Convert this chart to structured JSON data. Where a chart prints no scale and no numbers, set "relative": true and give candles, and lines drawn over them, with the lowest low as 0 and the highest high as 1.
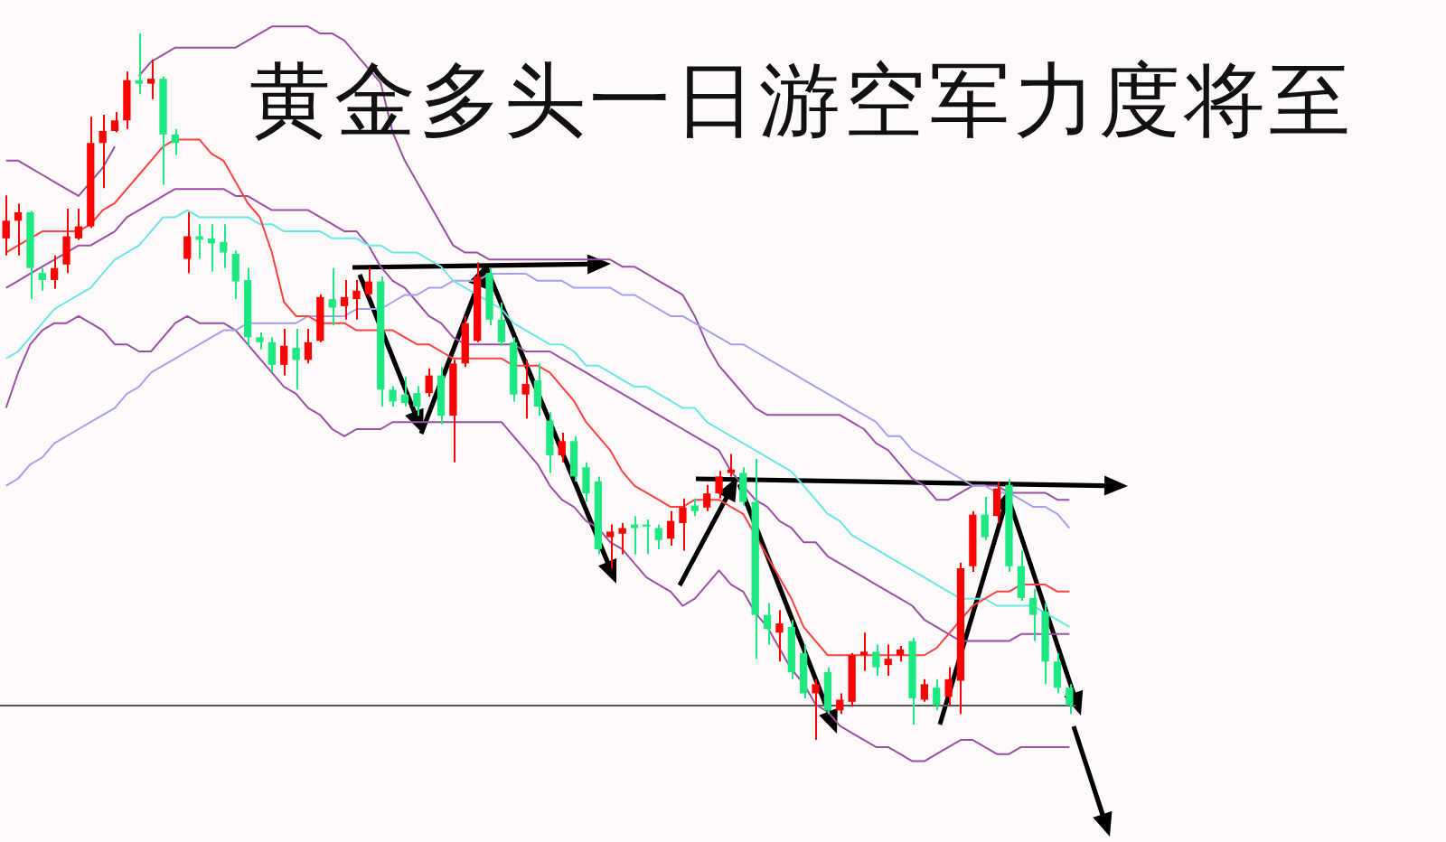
{
  "chart_data": {
    "type": "candlestick",
    "title": "黄金多头一日游空军力度将至",
    "relative": true,
    "legend": false,
    "categories": [
      null,
      null,
      null,
      null,
      null,
      null,
      null,
      null,
      null,
      null,
      null,
      null,
      null,
      null,
      null,
      null,
      null,
      null,
      null,
      null,
      null,
      null,
      null,
      null,
      null,
      null,
      null,
      null,
      null,
      null,
      null,
      null,
      null,
      null,
      null,
      null,
      null,
      null,
      null,
      null,
      null,
      null,
      null,
      null,
      null,
      null,
      null,
      null,
      null,
      null,
      null,
      null,
      null,
      null,
      null,
      null,
      null,
      null,
      null,
      null,
      null,
      null,
      null,
      null,
      null,
      null,
      null,
      null,
      null,
      null,
      null,
      null,
      null,
      null,
      null,
      null,
      null,
      null,
      null,
      null,
      null,
      null,
      null,
      null,
      null,
      null,
      null,
      null,
      null
    ],
    "ohlc": [
      [
        0.71,
        0.771,
        0.686,
        0.735
      ],
      [
        0.735,
        0.759,
        0.686,
        0.747
      ],
      [
        0.747,
        0.749,
        0.624,
        0.668
      ],
      [
        0.661,
        0.668,
        0.636,
        0.651
      ],
      [
        0.651,
        0.686,
        0.639,
        0.668
      ],
      [
        0.673,
        0.752,
        0.661,
        0.713
      ],
      [
        0.71,
        0.752,
        0.708,
        0.727
      ],
      [
        0.727,
        0.882,
        0.725,
        0.845
      ],
      [
        0.845,
        0.885,
        0.781,
        0.862
      ],
      [
        0.862,
        0.889,
        0.86,
        0.877
      ],
      [
        0.877,
        0.946,
        0.865,
        0.934
      ],
      [
        0.934,
        1,
        0.914,
        0.929
      ],
      [
        0.929,
        0.963,
        0.907,
        0.936
      ],
      [
        0.936,
        0.939,
        0.786,
        0.857
      ],
      [
        0.857,
        0.865,
        0.828,
        0.845
      ],
      [
        0.681,
        0.747,
        0.661,
        0.713
      ],
      [
        0.713,
        0.73,
        0.681,
        0.708
      ],
      [
        0.71,
        0.73,
        0.663,
        0.703
      ],
      [
        0.705,
        0.73,
        0.668,
        0.69
      ],
      [
        0.688,
        0.693,
        0.624,
        0.649
      ],
      [
        0.651,
        0.668,
        0.558,
        0.57
      ],
      [
        0.57,
        0.577,
        0.553,
        0.563
      ],
      [
        0.563,
        0.57,
        0.521,
        0.531
      ],
      [
        0.531,
        0.582,
        0.516,
        0.558
      ],
      [
        0.555,
        0.582,
        0.496,
        0.538
      ],
      [
        0.538,
        0.582,
        0.533,
        0.563
      ],
      [
        0.565,
        0.631,
        0.563,
        0.627
      ],
      [
        0.624,
        0.668,
        0.587,
        0.612
      ],
      [
        0.614,
        0.651,
        0.595,
        0.627
      ],
      [
        0.624,
        0.651,
        0.595,
        0.636
      ],
      [
        0.631,
        0.668,
        0.627,
        0.649
      ],
      [
        0.649,
        0.656,
        0.472,
        0.496
      ],
      [
        0.496,
        0.501,
        0.472,
        0.479
      ],
      [
        0.489,
        0.514,
        0.472,
        0.477
      ],
      [
        0.491,
        0.501,
        0.459,
        0.472
      ],
      [
        0.491,
        0.526,
        0.486,
        0.516
      ],
      [
        0.516,
        0.528,
        0.447,
        0.459
      ],
      [
        0.459,
        0.538,
        0.393,
        0.533
      ],
      [
        0.533,
        0.6,
        0.528,
        0.59
      ],
      [
        0.565,
        0.676,
        0.563,
        0.656
      ],
      [
        0.661,
        0.668,
        0.587,
        0.595
      ],
      [
        0.595,
        0.619,
        0.558,
        0.563
      ],
      [
        0.563,
        0.57,
        0.479,
        0.489
      ],
      [
        0.489,
        0.538,
        0.455,
        0.504
      ],
      [
        0.509,
        0.533,
        0.459,
        0.472
      ],
      [
        0.452,
        0.464,
        0.378,
        0.403
      ],
      [
        0.403,
        0.435,
        0.393,
        0.423
      ],
      [
        0.423,
        0.43,
        0.366,
        0.373
      ],
      [
        0.386,
        0.393,
        0.337,
        0.349
      ],
      [
        0.366,
        0.373,
        0.263,
        0.27
      ],
      [
        0.287,
        0.305,
        0.243,
        0.295
      ],
      [
        0.292,
        0.307,
        0.263,
        0.3
      ],
      [
        0.305,
        0.317,
        0.263,
        0.3
      ],
      [
        0.305,
        0.312,
        0.263,
        0.302
      ],
      [
        0.3,
        0.305,
        0.27,
        0.283
      ],
      [
        0.285,
        0.324,
        0.275,
        0.31
      ],
      [
        0.307,
        0.342,
        0.268,
        0.329
      ],
      [
        0.332,
        0.342,
        0.317,
        0.324
      ],
      [
        0.329,
        0.361,
        0.324,
        0.349
      ],
      [
        0.349,
        0.381,
        0.342,
        0.373
      ],
      [
        0.378,
        0.405,
        0.373,
        0.383
      ],
      [
        0.378,
        0.386,
        0.332,
        0.337
      ],
      [
        0.337,
        0.398,
        0.115,
        0.177
      ],
      [
        0.177,
        0.194,
        0.135,
        0.157
      ],
      [
        0.152,
        0.184,
        0.111,
        0.165
      ],
      [
        0.16,
        0.17,
        0.086,
        0.096
      ],
      [
        0.123,
        0.135,
        0.059,
        0.066
      ],
      [
        0.066,
        0.086,
        0,
        0.079
      ],
      [
        0.096,
        0.103,
        0.037,
        0.042
      ],
      [
        0.042,
        0.066,
        0.037,
        0.057
      ],
      [
        0.054,
        0.123,
        0.047,
        0.12
      ],
      [
        0.12,
        0.152,
        0.098,
        0.125
      ],
      [
        0.125,
        0.135,
        0.091,
        0.103
      ],
      [
        0.106,
        0.135,
        0.091,
        0.115
      ],
      [
        0.12,
        0.133,
        0.111,
        0.128
      ],
      [
        0.14,
        0.145,
        0.022,
        0.059
      ],
      [
        0.057,
        0.086,
        0.054,
        0.079
      ],
      [
        0.074,
        0.086,
        0.042,
        0.049
      ],
      [
        0.061,
        0.103,
        0.049,
        0.086
      ],
      [
        0.084,
        0.251,
        0.037,
        0.243
      ],
      [
        0.246,
        0.324,
        0.238,
        0.319
      ],
      [
        0.319,
        0.344,
        0.283,
        0.287
      ],
      [
        0.317,
        0.366,
        0.307,
        0.356
      ],
      [
        0.361,
        0.369,
        0.238,
        0.246
      ],
      [
        0.246,
        0.268,
        0.197,
        0.201
      ],
      [
        0.201,
        0.214,
        0.14,
        0.177
      ],
      [
        0.182,
        0.194,
        0.079,
        0.111
      ],
      [
        0.111,
        0.123,
        0.066,
        0.074
      ],
      [
        0.074,
        0.079,
        0.037,
        0.049
      ]
    ],
    "colors": [
      "#ff0000",
      "#ff0000",
      "#1ee882",
      "#1ee882",
      "#ff0000",
      "#ff0000",
      "#ff0000",
      "#ff0000",
      "#ff0000",
      "#ff0000",
      "#ff0000",
      "#1ee882",
      "#ff0000",
      "#1ee882",
      "#1ee882",
      "#ff0000",
      "#1ee882",
      "#1ee882",
      "#1ee882",
      "#1ee882",
      "#1ee882",
      "#1ee882",
      "#1ee882",
      "#ff0000",
      "#1ee882",
      "#ff0000",
      "#ff0000",
      "#1ee882",
      "#ff0000",
      "#ff0000",
      "#ff0000",
      "#1ee882",
      "#1ee882",
      "#1ee882",
      "#1ee882",
      "#ff0000",
      "#1ee882",
      "#ff0000",
      "#ff0000",
      "#ff0000",
      "#1ee882",
      "#1ee882",
      "#1ee882",
      "#ff0000",
      "#1ee882",
      "#1ee882",
      "#ff0000",
      "#1ee882",
      "#1ee882",
      "#1ee882",
      "#ff0000",
      "#ff0000",
      "#1ee882",
      "#1ee882",
      "#1ee882",
      "#ff0000",
      "#ff0000",
      "#1ee882",
      "#ff0000",
      "#ff0000",
      "#ff0000",
      "#1ee882",
      "#1ee882",
      "#1ee882",
      "#ff0000",
      "#1ee882",
      "#1ee882",
      "#ff0000",
      "#1ee882",
      "#ff0000",
      "#ff0000",
      "#ff0000",
      "#1ee882",
      "#ff0000",
      "#ff0000",
      "#1ee882",
      "#ff0000",
      "#1ee882",
      "#ff0000",
      "#ff0000",
      "#ff0000",
      "#1ee882",
      "#ff0000",
      "#1ee882",
      "#1ee882",
      "#1ee882",
      "#1ee882",
      "#1ee882",
      "#1ee882"
    ],
    "ref_lines": [
      {
        "axis": "y",
        "value": 0.049,
        "color": "#555555"
      }
    ],
    "series": [
      {
        "type": "line",
        "color": "#ff4040",
        "values": [
          0.69,
          0.7,
          0.71,
          0.72,
          0.72,
          0.72,
          0.72,
          0.73,
          0.75,
          0.76,
          0.78,
          0.8,
          0.82,
          0.84,
          0.85,
          0.85,
          0.85,
          0.83,
          0.82,
          0.79,
          0.76,
          0.74,
          0.69,
          0.62,
          0.6,
          0.6,
          0.59,
          0.59,
          0.59,
          0.58,
          0.58,
          0.58,
          0.58,
          0.57,
          0.56,
          0.56,
          0.55,
          0.54,
          0.54,
          0.54,
          0.54,
          0.54,
          0.53,
          0.53,
          0.53,
          0.52,
          0.5,
          0.48,
          0.45,
          0.43,
          0.41,
          0.38,
          0.36,
          0.35,
          0.34,
          0.33,
          0.33,
          0.34,
          0.34,
          0.34,
          0.33,
          0.32,
          0.29,
          0.26,
          0.23,
          0.2,
          0.16,
          0.14,
          0.12,
          0.12,
          0.12,
          0.12,
          0.12,
          0.12,
          0.12,
          0.12,
          0.12,
          0.13,
          0.15,
          0.17,
          0.19,
          0.2,
          0.21,
          0.21,
          0.22,
          0.22,
          0.22,
          0.21,
          0.21
        ]
      },
      {
        "type": "line",
        "color": "#6ae6ea",
        "values": [
          0.54,
          0.55,
          0.57,
          0.59,
          0.61,
          0.62,
          0.63,
          0.64,
          0.66,
          0.68,
          0.69,
          0.7,
          0.72,
          0.74,
          0.74,
          0.75,
          0.74,
          0.74,
          0.74,
          0.74,
          0.74,
          0.73,
          0.73,
          0.72,
          0.72,
          0.72,
          0.72,
          0.71,
          0.71,
          0.71,
          0.7,
          0.7,
          0.69,
          0.69,
          0.69,
          0.68,
          0.67,
          0.65,
          0.64,
          0.63,
          0.62,
          0.61,
          0.59,
          0.58,
          0.57,
          0.56,
          0.56,
          0.55,
          0.53,
          0.53,
          0.52,
          0.51,
          0.5,
          0.5,
          0.49,
          0.48,
          0.47,
          0.47,
          0.45,
          0.44,
          0.43,
          0.42,
          0.41,
          0.4,
          0.39,
          0.38,
          0.36,
          0.34,
          0.32,
          0.31,
          0.29,
          0.28,
          0.27,
          0.26,
          0.25,
          0.24,
          0.23,
          0.22,
          0.21,
          0.2,
          0.2,
          0.2,
          0.19,
          0.19,
          0.19,
          0.19,
          0.18,
          0.17,
          0.16
        ]
      },
      {
        "type": "line",
        "color": "#a6a0ec",
        "values": [
          0.36,
          0.37,
          0.39,
          0.4,
          0.42,
          0.43,
          0.44,
          0.45,
          0.46,
          0.47,
          0.49,
          0.5,
          0.52,
          0.53,
          0.54,
          0.55,
          0.56,
          0.57,
          0.58,
          0.58,
          0.59,
          0.59,
          0.59,
          0.59,
          0.59,
          0.6,
          0.6,
          0.6,
          0.6,
          0.61,
          0.61,
          0.61,
          0.62,
          0.63,
          0.63,
          0.64,
          0.64,
          0.65,
          0.65,
          0.65,
          0.66,
          0.66,
          0.66,
          0.66,
          0.65,
          0.65,
          0.65,
          0.64,
          0.64,
          0.64,
          0.64,
          0.63,
          0.63,
          0.62,
          0.61,
          0.6,
          0.6,
          0.59,
          0.58,
          0.57,
          0.56,
          0.56,
          0.55,
          0.54,
          0.53,
          0.52,
          0.51,
          0.5,
          0.49,
          0.48,
          0.47,
          0.46,
          0.45,
          0.43,
          0.43,
          0.41,
          0.4,
          0.39,
          0.38,
          0.37,
          0.36,
          0.36,
          0.35,
          0.35,
          0.34,
          0.33,
          0.33,
          0.32,
          0.3
        ]
      },
      {
        "type": "line",
        "color": "#9b4fa6",
        "values": [
          0.82,
          0.82,
          0.81,
          0.8,
          0.79,
          0.78,
          0.77,
          0.79,
          0.81,
          0.84,
          null,
          0.94,
          0.96,
          0.97,
          0.98,
          0.98,
          0.98,
          0.98,
          0.98,
          0.98,
          0.99,
          1.0,
          1.01,
          1.01,
          1.01,
          1.01,
          1.0,
          1.0,
          0.99,
          0.97,
          0.95,
          0.93,
          0.86,
          0.82,
          0.79,
          0.76,
          0.73,
          0.7,
          0.69,
          0.69,
          0.68,
          0.68,
          0.68,
          0.68,
          0.68,
          0.68,
          0.68,
          0.68,
          0.68,
          0.68,
          0.68,
          0.67,
          0.67,
          0.66,
          0.65,
          0.64,
          0.63,
          0.6,
          0.56,
          0.53,
          0.51,
          0.49,
          0.47,
          0.46,
          0.46,
          0.46,
          0.46,
          0.46,
          0.46,
          0.46,
          0.45,
          0.44,
          0.42,
          0.41,
          0.39,
          0.37,
          0.36,
          0.34,
          0.34,
          0.35,
          0.36,
          0.36,
          0.36,
          0.35,
          0.35,
          0.35,
          0.35,
          0.34,
          0.34
        ]
      },
      {
        "type": "line",
        "color": "#9b4fa6",
        "values": [
          0.64,
          0.65,
          0.66,
          0.67,
          0.68,
          0.69,
          0.7,
          0.7,
          0.71,
          0.72,
          0.74,
          0.75,
          0.76,
          0.77,
          0.78,
          0.78,
          0.78,
          0.78,
          0.78,
          0.77,
          0.77,
          0.76,
          0.75,
          0.75,
          0.75,
          0.75,
          0.74,
          0.73,
          0.72,
          0.72,
          0.7,
          0.67,
          0.65,
          0.64,
          0.62,
          0.6,
          0.59,
          0.57,
          0.56,
          0.56,
          0.56,
          0.56,
          0.56,
          0.55,
          0.55,
          0.55,
          0.54,
          0.53,
          0.52,
          0.51,
          0.5,
          0.49,
          0.48,
          0.47,
          0.46,
          0.45,
          0.44,
          0.43,
          0.42,
          0.41,
          0.38,
          0.36,
          0.34,
          0.33,
          0.31,
          0.3,
          0.28,
          0.28,
          0.26,
          0.25,
          0.24,
          0.23,
          0.22,
          0.21,
          0.2,
          0.19,
          0.17,
          0.16,
          0.15,
          0.14,
          0.14,
          0.14,
          0.14,
          0.14,
          0.15,
          0.15,
          0.15,
          0.15,
          0.15
        ]
      },
      {
        "type": "line",
        "color": "#9b4fa6",
        "values": [
          0.47,
          0.52,
          0.56,
          0.58,
          0.59,
          0.59,
          0.6,
          0.59,
          0.58,
          0.56,
          0.56,
          0.55,
          0.55,
          0.57,
          0.59,
          0.6,
          0.59,
          0.59,
          0.59,
          0.58,
          0.56,
          0.54,
          0.52,
          0.5,
          0.49,
          0.47,
          0.46,
          0.44,
          0.43,
          0.44,
          0.44,
          0.44,
          0.45,
          0.45,
          0.45,
          0.45,
          0.45,
          0.45,
          0.45,
          0.45,
          0.45,
          0.45,
          0.43,
          0.41,
          0.39,
          0.36,
          0.34,
          0.33,
          0.31,
          0.3,
          0.28,
          0.27,
          0.25,
          0.23,
          0.22,
          0.21,
          0.19,
          0.2,
          0.22,
          0.24,
          0.22,
          0.21,
          0.18,
          0.16,
          0.13,
          0.1,
          0.08,
          0.05,
          0.04,
          0.02,
          0.01,
          0.0,
          -0.01,
          -0.01,
          -0.02,
          -0.03,
          -0.03,
          -0.02,
          -0.01,
          0.0,
          0.0,
          -0.01,
          -0.02,
          -0.02,
          -0.01,
          -0.01,
          -0.01,
          -0.01,
          -0.01
        ]
      }
    ]
  }
}
